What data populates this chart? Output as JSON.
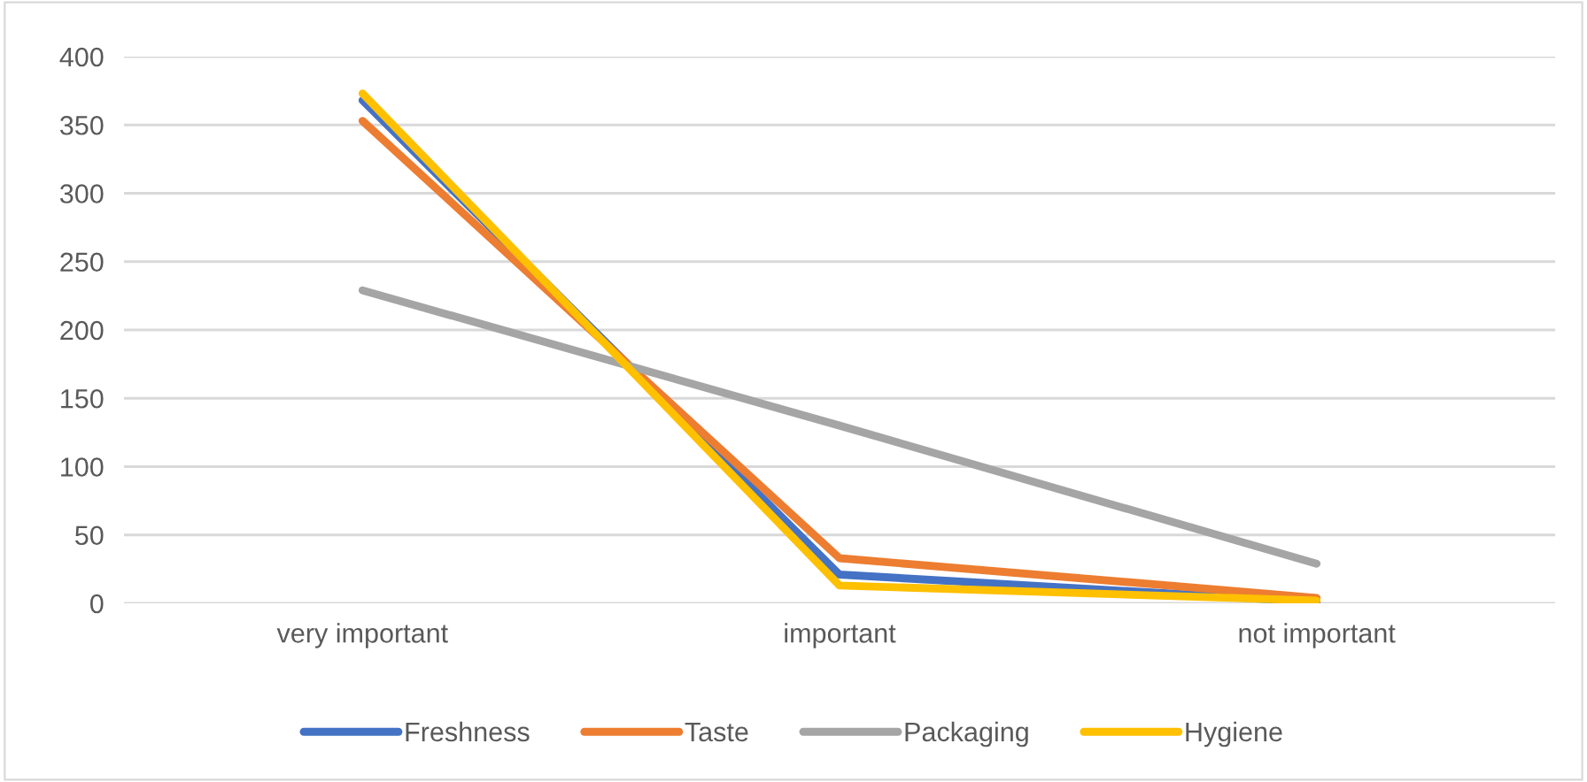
{
  "chart_data": {
    "type": "line",
    "categories": [
      "very important",
      "important",
      "not important"
    ],
    "series": [
      {
        "name": "Freshness",
        "color": "#4472c4",
        "values": [
          368,
          21,
          1
        ]
      },
      {
        "name": "Taste",
        "color": "#ed7d31",
        "values": [
          353,
          33,
          4
        ]
      },
      {
        "name": "Packaging",
        "color": "#a5a5a5",
        "values": [
          229,
          130,
          29
        ]
      },
      {
        "name": "Hygiene",
        "color": "#ffc000",
        "values": [
          373,
          13,
          2
        ]
      }
    ],
    "ylim": [
      0,
      400
    ],
    "yticks": [
      0,
      50,
      100,
      150,
      200,
      250,
      300,
      350,
      400
    ],
    "grid": "y",
    "legend": "bottom",
    "marker": "none",
    "line_style": "solid"
  }
}
